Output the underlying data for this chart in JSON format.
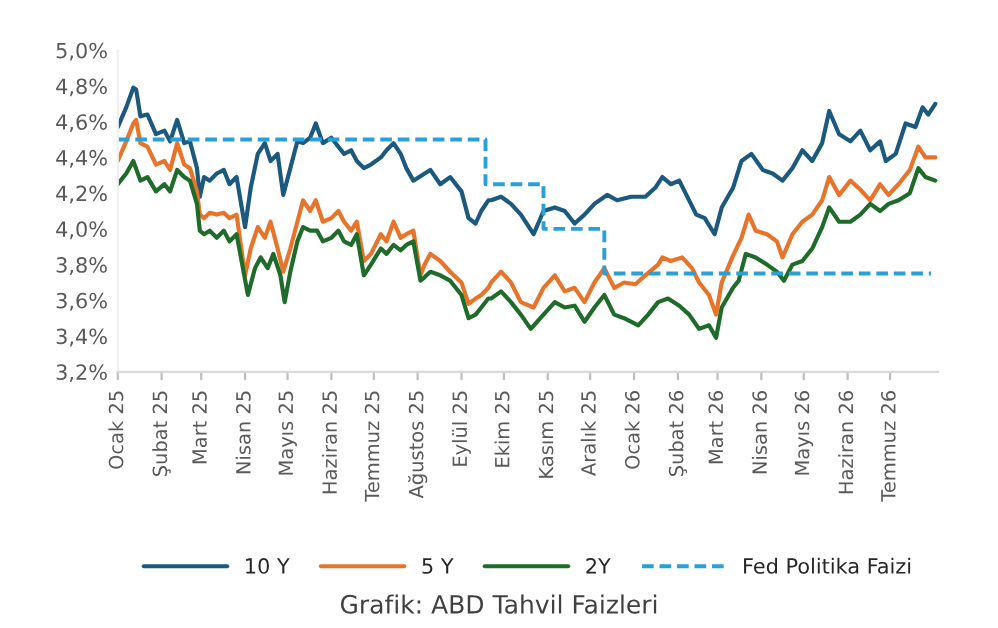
{
  "chart_data": {
    "type": "line",
    "annotations": [
      "Grafik: ABD Tahvil Faizleri"
    ],
    "xlim": [
      "2025-01-01",
      "2026-08-04"
    ],
    "xticks": [
      {
        "value": "2025-01-01",
        "label": "Ocak 25"
      },
      {
        "value": "2025-02-01",
        "label": "Şubat 25"
      },
      {
        "value": "2025-03-01",
        "label": "Mart 25"
      },
      {
        "value": "2025-04-01",
        "label": "Nisan 25"
      },
      {
        "value": "2025-05-01",
        "label": "Mayıs 25"
      },
      {
        "value": "2025-06-01",
        "label": "Haziran 25"
      },
      {
        "value": "2025-07-01",
        "label": "Temmuz 25"
      },
      {
        "value": "2025-08-01",
        "label": "Ağustos 25"
      },
      {
        "value": "2025-09-01",
        "label": "Eylül 25"
      },
      {
        "value": "2025-10-01",
        "label": "Ekim 25"
      },
      {
        "value": "2025-11-01",
        "label": "Kasım 25"
      },
      {
        "value": "2025-12-01",
        "label": "Aralık 25"
      },
      {
        "value": "2026-01-01",
        "label": "Ocak 26"
      },
      {
        "value": "2026-02-01",
        "label": "Şubat 26"
      },
      {
        "value": "2026-03-01",
        "label": "Mart 26"
      },
      {
        "value": "2026-04-01",
        "label": "Nisan 26"
      },
      {
        "value": "2026-05-01",
        "label": "Mayıs 26"
      },
      {
        "value": "2026-06-01",
        "label": "Haziran 26"
      },
      {
        "value": "2026-07-01",
        "label": "Temmuz 26"
      }
    ],
    "ylim": [
      3.2,
      5.0
    ],
    "yticks": [
      {
        "value": 3.2,
        "label": "3,2%"
      },
      {
        "value": 3.4,
        "label": "3,4%"
      },
      {
        "value": 3.6,
        "label": "3,6%"
      },
      {
        "value": 3.8,
        "label": "3,8%"
      },
      {
        "value": 4.0,
        "label": "4,0%"
      },
      {
        "value": 4.2,
        "label": "4,2%"
      },
      {
        "value": 4.4,
        "label": "4,4%"
      },
      {
        "value": 4.6,
        "label": "4,6%"
      },
      {
        "value": 4.8,
        "label": "4,8%"
      },
      {
        "value": 5.0,
        "label": "5,0%"
      }
    ],
    "legend": "bottom",
    "line_style": "solid",
    "series": [
      {
        "name": "10 Y",
        "color": "#1b5a7e",
        "x": [
          "2025-01-01",
          "2025-01-07",
          "2025-01-12",
          "2025-01-14",
          "2025-01-17",
          "2025-01-22",
          "2025-01-28",
          "2025-02-03",
          "2025-02-07",
          "2025-02-12",
          "2025-02-17",
          "2025-02-21",
          "2025-02-26",
          "2025-02-28",
          "2025-03-03",
          "2025-03-07",
          "2025-03-12",
          "2025-03-17",
          "2025-03-21",
          "2025-03-26",
          "2025-04-01",
          "2025-04-05",
          "2025-04-10",
          "2025-04-15",
          "2025-04-19",
          "2025-04-24",
          "2025-04-28",
          "2025-05-03",
          "2025-05-08",
          "2025-05-12",
          "2025-05-17",
          "2025-05-21",
          "2025-05-26",
          "2025-06-01",
          "2025-06-06",
          "2025-06-10",
          "2025-06-15",
          "2025-06-19",
          "2025-06-24",
          "2025-06-29",
          "2025-07-06",
          "2025-07-10",
          "2025-07-15",
          "2025-07-20",
          "2025-07-24",
          "2025-07-29",
          "2025-08-06",
          "2025-08-10",
          "2025-08-17",
          "2025-08-24",
          "2025-09-01",
          "2025-09-06",
          "2025-09-11",
          "2025-09-15",
          "2025-09-20",
          "2025-09-22",
          "2025-09-29",
          "2025-10-06",
          "2025-10-13",
          "2025-10-22",
          "2025-10-29",
          "2025-11-06",
          "2025-11-13",
          "2025-11-20",
          "2025-11-27",
          "2025-12-04",
          "2025-12-13",
          "2025-12-20",
          "2025-12-30",
          "2026-01-09",
          "2026-01-16",
          "2026-01-21",
          "2026-01-27",
          "2026-02-02",
          "2026-02-07",
          "2026-02-14",
          "2026-02-20",
          "2026-02-27",
          "2026-03-04",
          "2026-03-12",
          "2026-03-18",
          "2026-03-25",
          "2026-04-02",
          "2026-04-09",
          "2026-04-16",
          "2026-04-23",
          "2026-04-30",
          "2026-05-07",
          "2026-05-14",
          "2026-05-19",
          "2026-05-26",
          "2026-06-03",
          "2026-06-10",
          "2026-06-17",
          "2026-06-24",
          "2026-06-28",
          "2026-07-05",
          "2026-07-12",
          "2026-07-19",
          "2026-07-24",
          "2026-07-28",
          "2026-08-02"
        ],
        "values": [
          4.57,
          4.68,
          4.79,
          4.78,
          4.63,
          4.64,
          4.53,
          4.55,
          4.49,
          4.61,
          4.48,
          4.49,
          4.34,
          4.18,
          4.29,
          4.27,
          4.31,
          4.33,
          4.25,
          4.29,
          4.01,
          4.23,
          4.42,
          4.48,
          4.38,
          4.42,
          4.19,
          4.34,
          4.49,
          4.48,
          4.51,
          4.59,
          4.48,
          4.51,
          4.46,
          4.42,
          4.44,
          4.38,
          4.34,
          4.36,
          4.4,
          4.44,
          4.48,
          4.42,
          4.34,
          4.27,
          4.31,
          4.33,
          4.25,
          4.29,
          4.21,
          4.06,
          4.03,
          4.1,
          4.16,
          4.16,
          4.18,
          4.14,
          4.08,
          3.97,
          4.1,
          4.12,
          4.1,
          4.03,
          4.08,
          4.14,
          4.19,
          4.16,
          4.18,
          4.18,
          4.23,
          4.29,
          4.25,
          4.27,
          4.19,
          4.08,
          4.06,
          3.97,
          4.12,
          4.23,
          4.38,
          4.42,
          4.33,
          4.31,
          4.27,
          4.34,
          4.44,
          4.38,
          4.48,
          4.66,
          4.53,
          4.49,
          4.55,
          4.44,
          4.49,
          4.38,
          4.42,
          4.59,
          4.57,
          4.68,
          4.64,
          4.7
        ]
      },
      {
        "name": "5 Y",
        "color": "#e8732a",
        "x": [
          "2025-01-01",
          "2025-01-07",
          "2025-01-12",
          "2025-01-14",
          "2025-01-17",
          "2025-01-22",
          "2025-01-28",
          "2025-02-03",
          "2025-02-07",
          "2025-02-12",
          "2025-02-17",
          "2025-02-21",
          "2025-02-26",
          "2025-02-28",
          "2025-03-03",
          "2025-03-07",
          "2025-03-12",
          "2025-03-17",
          "2025-03-21",
          "2025-03-26",
          "2025-04-01",
          "2025-04-05",
          "2025-04-10",
          "2025-04-15",
          "2025-04-19",
          "2025-04-24",
          "2025-04-28",
          "2025-05-03",
          "2025-05-08",
          "2025-05-12",
          "2025-05-17",
          "2025-05-21",
          "2025-05-26",
          "2025-06-01",
          "2025-06-06",
          "2025-06-10",
          "2025-06-15",
          "2025-06-19",
          "2025-06-24",
          "2025-06-29",
          "2025-07-06",
          "2025-07-10",
          "2025-07-15",
          "2025-07-20",
          "2025-07-24",
          "2025-07-29",
          "2025-08-03",
          "2025-08-06",
          "2025-08-10",
          "2025-08-17",
          "2025-08-24",
          "2025-09-01",
          "2025-09-06",
          "2025-09-11",
          "2025-09-15",
          "2025-09-20",
          "2025-09-22",
          "2025-09-29",
          "2025-10-06",
          "2025-10-13",
          "2025-10-22",
          "2025-10-29",
          "2025-11-06",
          "2025-11-13",
          "2025-11-20",
          "2025-11-27",
          "2025-12-04",
          "2025-12-11",
          "2025-12-18",
          "2025-12-25",
          "2026-01-02",
          "2026-01-09",
          "2026-01-18",
          "2026-01-21",
          "2026-01-27",
          "2026-02-04",
          "2026-02-11",
          "2026-02-16",
          "2026-02-23",
          "2026-02-28",
          "2026-03-04",
          "2026-03-12",
          "2026-03-18",
          "2026-03-23",
          "2026-03-28",
          "2026-04-05",
          "2026-04-12",
          "2026-04-16",
          "2026-04-23",
          "2026-04-30",
          "2026-05-07",
          "2026-05-14",
          "2026-05-19",
          "2026-05-26",
          "2026-06-03",
          "2026-06-10",
          "2026-06-17",
          "2026-06-24",
          "2026-06-30",
          "2026-07-07",
          "2026-07-15",
          "2026-07-21",
          "2026-07-26",
          "2026-08-02"
        ],
        "values": [
          4.38,
          4.49,
          4.59,
          4.61,
          4.48,
          4.46,
          4.36,
          4.38,
          4.33,
          4.48,
          4.36,
          4.34,
          4.21,
          4.08,
          4.06,
          4.09,
          4.08,
          4.09,
          4.06,
          4.08,
          3.74,
          3.89,
          4.01,
          3.95,
          4.04,
          3.89,
          3.76,
          3.89,
          4.04,
          4.16,
          4.1,
          4.16,
          4.04,
          4.06,
          4.1,
          4.04,
          3.99,
          4.04,
          3.82,
          3.86,
          3.97,
          3.93,
          4.04,
          3.95,
          3.97,
          3.99,
          3.74,
          3.8,
          3.86,
          3.82,
          3.76,
          3.7,
          3.58,
          3.61,
          3.63,
          3.67,
          3.7,
          3.76,
          3.7,
          3.59,
          3.56,
          3.67,
          3.74,
          3.65,
          3.67,
          3.59,
          3.7,
          3.78,
          3.67,
          3.7,
          3.69,
          3.74,
          3.8,
          3.84,
          3.82,
          3.84,
          3.78,
          3.7,
          3.63,
          3.52,
          3.7,
          3.85,
          3.95,
          4.08,
          3.99,
          3.97,
          3.93,
          3.84,
          3.97,
          4.04,
          4.08,
          4.16,
          4.29,
          4.19,
          4.27,
          4.22,
          4.16,
          4.25,
          4.19,
          4.25,
          4.33,
          4.46,
          4.4,
          4.4
        ]
      },
      {
        "name": "2Y",
        "color": "#1e6b2a",
        "x": [
          "2025-01-01",
          "2025-01-07",
          "2025-01-12",
          "2025-01-17",
          "2025-01-22",
          "2025-01-28",
          "2025-02-03",
          "2025-02-07",
          "2025-02-12",
          "2025-02-17",
          "2025-02-21",
          "2025-02-26",
          "2025-02-28",
          "2025-03-03",
          "2025-03-07",
          "2025-03-12",
          "2025-03-17",
          "2025-03-21",
          "2025-03-26",
          "2025-04-03",
          "2025-04-08",
          "2025-04-12",
          "2025-04-17",
          "2025-04-21",
          "2025-04-26",
          "2025-04-29",
          "2025-05-03",
          "2025-05-08",
          "2025-05-12",
          "2025-05-17",
          "2025-05-22",
          "2025-05-26",
          "2025-06-01",
          "2025-06-06",
          "2025-06-10",
          "2025-06-15",
          "2025-06-19",
          "2025-06-24",
          "2025-06-29",
          "2025-07-06",
          "2025-07-10",
          "2025-07-15",
          "2025-07-20",
          "2025-07-24",
          "2025-07-29",
          "2025-08-03",
          "2025-08-06",
          "2025-08-10",
          "2025-08-17",
          "2025-08-24",
          "2025-09-01",
          "2025-09-06",
          "2025-09-11",
          "2025-09-15",
          "2025-09-20",
          "2025-09-22",
          "2025-09-29",
          "2025-10-06",
          "2025-10-13",
          "2025-10-20",
          "2025-10-29",
          "2025-11-06",
          "2025-11-13",
          "2025-11-20",
          "2025-11-27",
          "2025-12-04",
          "2025-12-11",
          "2025-12-18",
          "2025-12-25",
          "2026-01-04",
          "2026-01-11",
          "2026-01-18",
          "2026-01-25",
          "2026-02-02",
          "2026-02-09",
          "2026-02-16",
          "2026-02-23",
          "2026-02-28",
          "2026-03-04",
          "2026-03-12",
          "2026-03-16",
          "2026-03-21",
          "2026-03-28",
          "2026-04-05",
          "2026-04-12",
          "2026-04-17",
          "2026-04-23",
          "2026-04-30",
          "2026-05-07",
          "2026-05-14",
          "2026-05-19",
          "2026-05-26",
          "2026-06-03",
          "2026-06-10",
          "2026-06-17",
          "2026-06-24",
          "2026-06-30",
          "2026-07-07",
          "2026-07-15",
          "2026-07-21",
          "2026-07-26",
          "2026-08-02"
        ],
        "values": [
          4.25,
          4.31,
          4.38,
          4.27,
          4.29,
          4.21,
          4.25,
          4.21,
          4.33,
          4.29,
          4.27,
          4.14,
          3.99,
          3.97,
          3.99,
          3.95,
          3.99,
          3.93,
          3.97,
          3.63,
          3.78,
          3.84,
          3.78,
          3.86,
          3.74,
          3.59,
          3.76,
          3.93,
          4.01,
          3.99,
          3.99,
          3.93,
          3.95,
          3.99,
          3.93,
          3.91,
          3.97,
          3.74,
          3.8,
          3.89,
          3.86,
          3.91,
          3.88,
          3.91,
          3.93,
          3.71,
          3.73,
          3.76,
          3.74,
          3.71,
          3.63,
          3.5,
          3.52,
          3.56,
          3.61,
          3.61,
          3.65,
          3.59,
          3.52,
          3.44,
          3.52,
          3.59,
          3.56,
          3.57,
          3.48,
          3.56,
          3.63,
          3.52,
          3.5,
          3.46,
          3.52,
          3.59,
          3.61,
          3.57,
          3.52,
          3.44,
          3.46,
          3.39,
          3.56,
          3.67,
          3.71,
          3.86,
          3.84,
          3.8,
          3.76,
          3.71,
          3.8,
          3.82,
          3.89,
          4.01,
          4.12,
          4.04,
          4.04,
          4.08,
          4.14,
          4.1,
          4.14,
          4.16,
          4.2,
          4.34,
          4.29,
          4.27
        ]
      },
      {
        "name": "Fed Politika Faizi",
        "type": "step",
        "color": "#2a9fd8",
        "line_style": "dashed",
        "x": [
          "2025-01-01",
          "2025-09-18",
          "2025-10-29",
          "2025-12-11",
          "2026-07-30"
        ],
        "values": [
          4.5,
          4.25,
          4.0,
          3.75,
          3.75
        ]
      }
    ]
  }
}
